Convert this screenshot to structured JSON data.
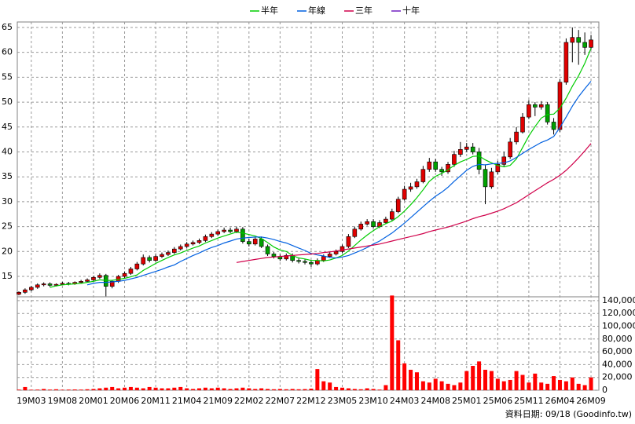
{
  "chart_data": {
    "type": "candlestick",
    "categories": [
      null,
      null,
      "19M03",
      null,
      null,
      null,
      null,
      "19M08",
      null,
      null,
      null,
      null,
      "20M01",
      null,
      null,
      null,
      null,
      "20M06",
      null,
      null,
      null,
      null,
      "20M11",
      null,
      null,
      null,
      null,
      "21M04",
      null,
      null,
      null,
      null,
      "21M09",
      null,
      null,
      null,
      null,
      "22M02",
      null,
      null,
      null,
      null,
      "22M07",
      null,
      null,
      null,
      null,
      "22M12",
      null,
      null,
      null,
      null,
      "23M05",
      null,
      null,
      null,
      null,
      "23M10",
      null,
      null,
      null,
      null,
      "24M03",
      null,
      null,
      null,
      null,
      "24M08",
      null,
      null,
      null,
      null,
      "25M01",
      null,
      null,
      null,
      null,
      "25M06",
      null,
      null,
      null,
      null,
      "25M11",
      null,
      null,
      null,
      null,
      "26M04",
      null,
      null,
      null,
      null,
      "26M09"
    ],
    "open": [
      11.4,
      11.8,
      12.3,
      12.8,
      13.3,
      13.5,
      13.2,
      13.4,
      13.6,
      13.5,
      13.8,
      14.0,
      14.3,
      14.8,
      15.2,
      13.0,
      14.0,
      15.0,
      15.6,
      16.5,
      17.5,
      18.8,
      18.2,
      19.0,
      19.4,
      19.8,
      20.5,
      21.0,
      21.5,
      21.8,
      22.2,
      23.0,
      23.5,
      24.0,
      24.3,
      24.0,
      24.5,
      22.0,
      21.5,
      22.5,
      21.0,
      19.5,
      19.0,
      18.5,
      19.2,
      18.2,
      18.0,
      17.8,
      17.5,
      18.2,
      19.0,
      19.5,
      20.0,
      21.0,
      23.0,
      24.5,
      25.5,
      26.0,
      25.0,
      25.8,
      26.5,
      28.0,
      30.5,
      32.5,
      33.0,
      34.0,
      36.5,
      38.0,
      36.5,
      36.0,
      37.5,
      39.5,
      40.5,
      41.0,
      40.0,
      36.5,
      33.0,
      36.0,
      37.5,
      39.0,
      42.0,
      44.0,
      47.0,
      49.5,
      49.0,
      49.5,
      46.0,
      44.5,
      54.0,
      62.0,
      63.0,
      62.0,
      61.0
    ],
    "high": [
      12.0,
      12.6,
      13.1,
      13.6,
      13.8,
      13.8,
      13.6,
      13.9,
      13.9,
      14.0,
      14.3,
      14.6,
      15.1,
      15.6,
      15.5,
      14.3,
      15.3,
      16.0,
      16.9,
      17.9,
      19.4,
      19.2,
      19.4,
      19.8,
      20.2,
      20.9,
      21.4,
      21.9,
      22.2,
      22.6,
      23.4,
      23.9,
      24.4,
      24.8,
      24.8,
      25.0,
      24.9,
      22.6,
      22.9,
      23.0,
      21.4,
      19.9,
      19.4,
      19.6,
      19.6,
      18.6,
      18.4,
      18.2,
      18.6,
      19.4,
      19.9,
      20.4,
      21.4,
      23.5,
      25.0,
      26.0,
      26.5,
      26.5,
      26.3,
      27.0,
      28.6,
      31.0,
      33.2,
      33.8,
      34.6,
      37.2,
      38.8,
      38.6,
      37.0,
      38.0,
      40.2,
      42.0,
      41.8,
      41.8,
      40.8,
      37.5,
      36.8,
      38.2,
      40.0,
      42.8,
      45.0,
      47.8,
      50.4,
      50.0,
      50.2,
      50.0,
      46.8,
      54.6,
      62.8,
      65.0,
      64.5,
      64.0,
      63.5
    ],
    "low": [
      11.2,
      11.5,
      12.0,
      12.5,
      13.0,
      12.9,
      13.0,
      13.2,
      13.2,
      13.3,
      13.5,
      13.8,
      14.0,
      14.5,
      11.0,
      12.6,
      13.7,
      14.7,
      15.3,
      16.2,
      17.2,
      17.8,
      17.9,
      18.7,
      19.1,
      19.5,
      20.2,
      20.7,
      21.2,
      21.5,
      21.9,
      22.7,
      23.2,
      23.7,
      23.7,
      23.7,
      21.6,
      21.0,
      21.2,
      20.7,
      19.1,
      18.6,
      18.1,
      18.2,
      17.8,
      17.6,
      17.4,
      16.9,
      17.2,
      17.9,
      18.7,
      19.2,
      19.7,
      20.7,
      22.7,
      24.2,
      25.2,
      24.6,
      24.7,
      25.5,
      26.2,
      27.7,
      30.2,
      32.0,
      32.6,
      33.7,
      36.0,
      36.0,
      35.2,
      35.6,
      37.0,
      39.0,
      40.0,
      39.5,
      35.5,
      29.5,
      32.6,
      35.5,
      37.0,
      38.6,
      41.5,
      43.7,
      46.6,
      47.2,
      48.5,
      45.5,
      43.5,
      44.0,
      53.5,
      58.0,
      57.5,
      59.5,
      60.5
    ],
    "close": [
      11.8,
      12.3,
      12.8,
      13.3,
      13.5,
      13.2,
      13.4,
      13.6,
      13.5,
      13.8,
      14.0,
      14.3,
      14.8,
      15.2,
      13.0,
      14.0,
      15.0,
      15.6,
      16.5,
      17.5,
      18.8,
      18.2,
      19.0,
      19.4,
      19.8,
      20.5,
      21.0,
      21.5,
      21.8,
      22.2,
      23.0,
      23.5,
      24.0,
      24.3,
      24.0,
      24.5,
      22.0,
      21.5,
      22.5,
      21.0,
      19.5,
      19.0,
      18.5,
      19.2,
      18.2,
      18.0,
      17.8,
      17.5,
      18.2,
      19.0,
      19.5,
      20.0,
      21.0,
      23.0,
      24.5,
      25.5,
      26.0,
      25.0,
      25.8,
      26.5,
      28.0,
      30.5,
      32.5,
      33.0,
      34.0,
      36.5,
      38.0,
      36.5,
      36.0,
      37.5,
      39.5,
      40.5,
      41.0,
      40.0,
      36.5,
      33.0,
      36.0,
      37.5,
      39.0,
      42.0,
      44.0,
      47.0,
      49.5,
      49.0,
      49.5,
      46.0,
      44.5,
      54.0,
      62.0,
      63.0,
      62.0,
      61.0,
      62.5
    ],
    "up_color": "#e00000",
    "down_color": "#00a000",
    "series": [
      {
        "name": "半年",
        "color": "#00cc00",
        "values": [
          null,
          null,
          null,
          null,
          null,
          12.8,
          13.1,
          13.3,
          13.4,
          13.5,
          13.6,
          13.8,
          14.0,
          14.3,
          14.2,
          14.2,
          14.4,
          14.6,
          14.9,
          15.3,
          16.2,
          16.9,
          17.6,
          18.2,
          18.8,
          19.3,
          19.7,
          20.2,
          20.7,
          21.1,
          21.7,
          22.2,
          22.7,
          23.1,
          23.5,
          23.9,
          23.7,
          23.4,
          23.1,
          22.6,
          21.8,
          20.9,
          20.3,
          20.0,
          19.2,
          18.7,
          18.5,
          18.2,
          18.2,
          18.1,
          18.3,
          18.7,
          19.2,
          20.1,
          21.2,
          22.3,
          23.3,
          24.2,
          25.0,
          25.6,
          26.1,
          27.0,
          28.1,
          29.4,
          30.8,
          32.4,
          34.1,
          35.1,
          35.7,
          36.4,
          37.3,
          38.0,
          38.5,
          39.1,
          39.2,
          38.4,
          37.8,
          37.3,
          37.0,
          37.3,
          38.6,
          40.9,
          43.2,
          45.1,
          46.8,
          47.5,
          47.6,
          48.8,
          50.8,
          53.2,
          55.3,
          57.8,
          60.8
        ]
      },
      {
        "name": "年線",
        "color": "#0060e0",
        "values": [
          null,
          null,
          null,
          null,
          null,
          null,
          null,
          null,
          null,
          null,
          null,
          13.3,
          13.6,
          13.8,
          13.8,
          13.9,
          14.0,
          14.2,
          14.5,
          14.8,
          15.2,
          15.6,
          16.0,
          16.4,
          16.9,
          17.3,
          18.0,
          18.6,
          19.2,
          19.7,
          20.3,
          20.8,
          21.2,
          21.7,
          22.1,
          22.5,
          22.7,
          22.8,
          22.9,
          22.9,
          22.7,
          22.4,
          22.0,
          21.7,
          21.2,
          20.7,
          20.2,
          19.6,
          19.3,
          19.1,
          18.8,
          18.7,
          18.9,
          19.2,
          19.7,
          20.2,
          20.8,
          21.5,
          22.1,
          22.9,
          23.7,
          24.7,
          25.7,
          26.8,
          27.9,
          29.0,
          30.1,
          31.1,
          31.9,
          32.9,
          34.1,
          35.2,
          36.3,
          37.1,
          37.5,
          37.4,
          37.6,
          37.7,
          37.8,
          38.2,
          38.9,
          39.7,
          40.5,
          41.2,
          41.9,
          42.4,
          43.1,
          44.9,
          47.0,
          49.2,
          51.1,
          52.7,
          54.2
        ]
      },
      {
        "name": "三年",
        "color": "#d0004a",
        "values": [
          null,
          null,
          null,
          null,
          null,
          null,
          null,
          null,
          null,
          null,
          null,
          null,
          null,
          null,
          null,
          null,
          null,
          null,
          null,
          null,
          null,
          null,
          null,
          null,
          null,
          null,
          null,
          null,
          null,
          null,
          null,
          null,
          null,
          null,
          null,
          17.8,
          18.0,
          18.2,
          18.4,
          18.6,
          18.8,
          18.9,
          19.0,
          19.1,
          19.2,
          19.3,
          19.4,
          19.5,
          19.6,
          19.8,
          19.9,
          20.1,
          20.3,
          20.5,
          20.7,
          20.9,
          21.1,
          21.3,
          21.5,
          21.8,
          22.1,
          22.4,
          22.7,
          23.0,
          23.3,
          23.6,
          24.0,
          24.3,
          24.6,
          24.9,
          25.3,
          25.7,
          26.1,
          26.6,
          27.0,
          27.3,
          27.7,
          28.1,
          28.6,
          29.2,
          29.8,
          30.6,
          31.4,
          32.2,
          33.0,
          33.8,
          34.5,
          35.3,
          36.3,
          37.5,
          38.8,
          40.2,
          41.7
        ]
      },
      {
        "name": "十年",
        "color": "#7020c0",
        "values": [
          null,
          null,
          null,
          null,
          null,
          null,
          null,
          null,
          null,
          null,
          null,
          null,
          null,
          null,
          null,
          null,
          null,
          null,
          null,
          null,
          null,
          null,
          null,
          null,
          null,
          null,
          null,
          null,
          null,
          null,
          null,
          null,
          null,
          null,
          null,
          null,
          null,
          null,
          null,
          null,
          null,
          null,
          null,
          null,
          null,
          null,
          null,
          null,
          null,
          null,
          null,
          null,
          null,
          null,
          null,
          null,
          null,
          null,
          null,
          null,
          null,
          null,
          null,
          null,
          null,
          null,
          null,
          null,
          null,
          null,
          null,
          null,
          null,
          null,
          null,
          null,
          null,
          null,
          null,
          null,
          null,
          null,
          null,
          null,
          null,
          null,
          null,
          null,
          null,
          null,
          null,
          null,
          null
        ]
      }
    ],
    "ylim": [
      10.9,
      66.1
    ],
    "yticks": [
      15,
      20,
      25,
      30,
      35,
      40,
      45,
      50,
      55,
      60,
      65
    ],
    "grid": true,
    "legend": "top",
    "volume": {
      "color": "#ff0000",
      "values": [
        1000,
        5000,
        800,
        1000,
        2000,
        1000,
        1500,
        800,
        1000,
        1200,
        1000,
        1500,
        2000,
        3000,
        4000,
        5000,
        3000,
        4000,
        5000,
        4000,
        3000,
        5000,
        4000,
        3000,
        3000,
        4000,
        5000,
        3000,
        2000,
        3000,
        4000,
        3000,
        4000,
        3000,
        2000,
        3000,
        4000,
        3000,
        2000,
        3000,
        2000,
        1500,
        2000,
        1500,
        2000,
        1500,
        1800,
        2500,
        33000,
        14000,
        12000,
        5000,
        4000,
        3000,
        2000,
        1500,
        3000,
        2000,
        1000,
        8000,
        148000,
        78000,
        42000,
        32000,
        28000,
        14000,
        12000,
        18000,
        14000,
        10000,
        8000,
        12000,
        30000,
        38000,
        45000,
        32000,
        30000,
        18000,
        14000,
        16000,
        30000,
        24000,
        12000,
        26000,
        12000,
        10000,
        22000,
        16000,
        14000,
        20000,
        10000,
        8000,
        20000
      ],
      "ylim": [
        0,
        146000
      ],
      "yticks": [
        0,
        {
          "value": 20000,
          "label": "20,000"
        },
        {
          "value": 40000,
          "label": "40,000"
        },
        {
          "value": 60000,
          "label": "60,000"
        },
        {
          "value": 80000,
          "label": "80,000"
        },
        {
          "value": 100000,
          "label": "100,000"
        },
        {
          "value": 120000,
          "label": "120,000"
        },
        {
          "value": 140000,
          "label": "140,000"
        }
      ]
    },
    "source": "資料日期: 09/18 (Goodinfo.tw)"
  }
}
